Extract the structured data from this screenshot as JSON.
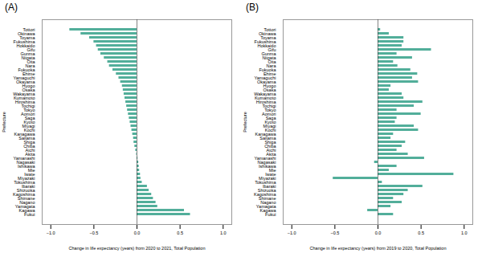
{
  "chart_data": [
    {
      "type": "bar",
      "orientation": "horizontal",
      "title": "(A)",
      "categories": [
        "Tottori",
        "Okinawa",
        "Toyama",
        "Fukushima",
        "Hokkaido",
        "Gifu",
        "Gunma",
        "Niigata",
        "Oita",
        "Nara",
        "Fukuoka",
        "Ehime",
        "Yamaguchi",
        "Okayama",
        "Hyogo",
        "Osaka",
        "Wakayama",
        "Kumamoto",
        "Hiroshima",
        "Tochigi",
        "Tokyo",
        "Aomori",
        "Saga",
        "Kyoto",
        "Miyagi",
        "Kochi",
        "Kanagawa",
        "Saitama",
        "Shiga",
        "Chiba",
        "Aichi",
        "Akita",
        "Yamanashi",
        "Nagasaki",
        "Ishikawa",
        "Mie",
        "Iwate",
        "Miyazaki",
        "Tokushima",
        "Ibaraki",
        "Shizuoka",
        "Kagoshima",
        "Shimane",
        "Nagano",
        "Yamagata",
        "Kagawa",
        "Fukui"
      ],
      "values": [
        -0.78,
        -0.65,
        -0.55,
        -0.5,
        -0.47,
        -0.45,
        -0.42,
        -0.38,
        -0.34,
        -0.32,
        -0.28,
        -0.24,
        -0.21,
        -0.19,
        -0.17,
        -0.16,
        -0.15,
        -0.14,
        -0.13,
        -0.12,
        -0.11,
        -0.1,
        -0.09,
        -0.08,
        -0.07,
        -0.06,
        -0.05,
        -0.04,
        -0.035,
        -0.025,
        -0.015,
        -0.005,
        0.01,
        0.02,
        0.025,
        0.03,
        0.04,
        0.045,
        0.06,
        0.12,
        0.14,
        0.17,
        0.19,
        0.22,
        0.24,
        0.55,
        0.62
      ],
      "color": "#52AE9A",
      "xlabel": "Change in life expectancy (years) from 2020 to 2021, Total Population",
      "ylabel": "Prefecture",
      "xlim": [
        -1.1,
        1.1
      ],
      "xticks": [
        {
          "value": -1.0,
          "label": "−1.0"
        },
        {
          "value": -0.5,
          "label": "−0.5"
        },
        {
          "value": 0.0,
          "label": "0.0"
        },
        0.5,
        {
          "value": 1.0,
          "label": "1.0"
        }
      ],
      "grid": false
    },
    {
      "type": "bar",
      "orientation": "horizontal",
      "title": "(B)",
      "categories": [
        "Tottori",
        "Okinawa",
        "Toyama",
        "Fukushima",
        "Hokkaido",
        "Gifu",
        "Gunma",
        "Niigata",
        "Oita",
        "Nara",
        "Fukuoka",
        "Ehime",
        "Yamaguchi",
        "Okayama",
        "Hyogo",
        "Osaka",
        "Wakayama",
        "Kumamoto",
        "Hiroshima",
        "Tochigi",
        "Tokyo",
        "Aomori",
        "Saga",
        "Kyoto",
        "Miyagi",
        "Kochi",
        "Kanagawa",
        "Saitama",
        "Shiga",
        "Chiba",
        "Aichi",
        "Akita",
        "Yamanashi",
        "Nagasaki",
        "Ishikawa",
        "Mie",
        "Iwate",
        "Miyazaki",
        "Tokushima",
        "Ibaraki",
        "Shizuoka",
        "Kagoshima",
        "Shimane",
        "Nagano",
        "Yamagata",
        "Kagawa",
        "Fukui"
      ],
      "values": [
        0.03,
        0.13,
        0.3,
        0.3,
        0.28,
        0.62,
        0.22,
        0.4,
        0.18,
        0.23,
        0.38,
        0.46,
        0.4,
        0.47,
        0.15,
        0.13,
        0.28,
        0.3,
        0.52,
        0.42,
        0.22,
        0.5,
        0.22,
        0.2,
        0.42,
        0.47,
        0.18,
        0.15,
        0.32,
        0.28,
        0.22,
        0.35,
        0.54,
        -0.04,
        0.22,
        0.13,
        0.88,
        -0.52,
        0.05,
        0.52,
        0.35,
        0.3,
        0.18,
        0.28,
        0.15,
        -0.12,
        0.18
      ],
      "color": "#52AE9A",
      "xlabel": "Change in life expectancy (years) from 2019 to 2020, Total Population",
      "ylabel": "Prefecture",
      "xlim": [
        -1.1,
        1.1
      ],
      "xticks": [
        {
          "value": -1.0,
          "label": "−1.0"
        },
        {
          "value": -0.5,
          "label": "−0.5"
        },
        {
          "value": 0.0,
          "label": "0.0"
        },
        0.5,
        {
          "value": 1.0,
          "label": "1.0"
        }
      ],
      "grid": false
    }
  ]
}
